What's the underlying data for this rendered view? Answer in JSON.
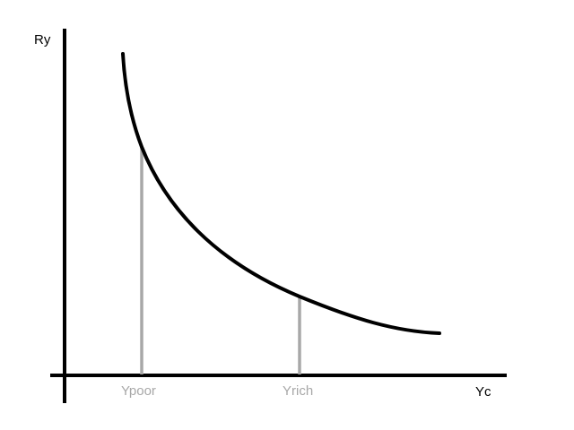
{
  "diagram": {
    "y_axis_label": "Ry",
    "x_axis_label": "Yc",
    "markers": [
      {
        "label": "Ypoor"
      },
      {
        "label": "Yrich"
      }
    ],
    "colors": {
      "axes": "#000000",
      "curve": "#000000",
      "markers": "#a8a8a8",
      "background": "#ffffff"
    }
  }
}
